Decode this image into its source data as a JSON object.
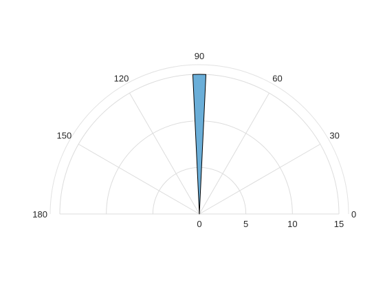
{
  "chart_data": {
    "type": "polar-histogram",
    "title": "",
    "theta_range_deg": [
      0,
      180
    ],
    "r_range": [
      0,
      15
    ],
    "theta_ticks": [
      "0",
      "30",
      "60",
      "90",
      "120",
      "150",
      "180"
    ],
    "theta_tick_values": [
      0,
      30,
      60,
      90,
      120,
      150,
      180
    ],
    "r_ticks": [
      "0",
      "5",
      "10",
      "15"
    ],
    "r_tick_values": [
      0,
      5,
      10,
      15
    ],
    "bins": [
      {
        "theta_start": 87.3,
        "theta_end": 92.7,
        "value": 15
      }
    ],
    "colors": {
      "bar_fill": "#6aaed8",
      "bar_edge": "#000000",
      "grid": "#dcdcdc"
    },
    "grid": true
  }
}
